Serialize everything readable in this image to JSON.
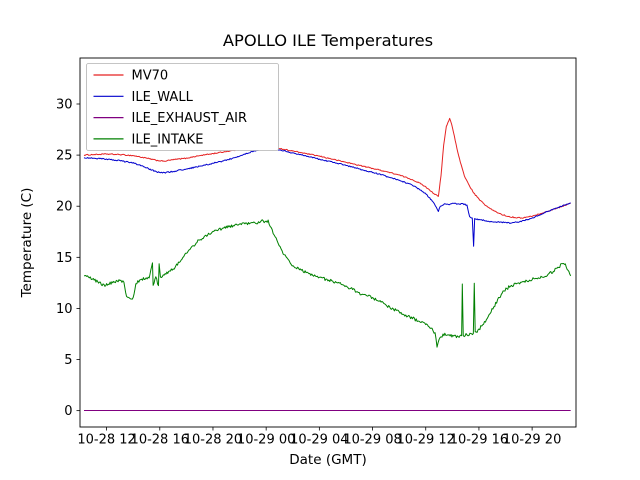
{
  "figure": {
    "background": "#ffffff"
  },
  "chart_data": {
    "type": "line",
    "title": "APOLLO ILE Temperatures",
    "xlabel": "Date (GMT)",
    "ylabel": "Temperature (C)",
    "x_unit": "hours since 10-28 00:00 GMT",
    "grid": false,
    "legend_position": "upper left",
    "xlim": [
      10.0,
      47.3
    ],
    "ylim": [
      -1.6,
      34.5
    ],
    "yticks": [
      0,
      5,
      10,
      15,
      20,
      25,
      30
    ],
    "xticks": {
      "values": [
        12,
        16,
        20,
        24,
        28,
        32,
        36,
        40,
        44
      ],
      "labels": [
        "10-28 12",
        "10-28 16",
        "10-28 20",
        "10-29 00",
        "10-29 04",
        "10-29 08",
        "10-29 12",
        "10-29 16",
        "10-29 20"
      ]
    },
    "series": [
      {
        "name": "MV70",
        "color": "#e52222",
        "noise": 0.05,
        "points": [
          [
            10.3,
            25.0
          ],
          [
            11.0,
            25.05
          ],
          [
            12.0,
            25.1
          ],
          [
            13.0,
            25.05
          ],
          [
            14.0,
            24.95
          ],
          [
            15.0,
            24.7
          ],
          [
            15.7,
            24.5
          ],
          [
            16.3,
            24.4
          ],
          [
            17.0,
            24.55
          ],
          [
            18.0,
            24.7
          ],
          [
            19.0,
            24.95
          ],
          [
            20.0,
            25.15
          ],
          [
            21.0,
            25.35
          ],
          [
            22.0,
            25.55
          ],
          [
            23.0,
            25.75
          ],
          [
            23.8,
            25.85
          ],
          [
            24.3,
            25.8
          ],
          [
            25.0,
            25.65
          ],
          [
            26.0,
            25.4
          ],
          [
            27.0,
            25.15
          ],
          [
            28.0,
            24.9
          ],
          [
            29.0,
            24.6
          ],
          [
            30.0,
            24.3
          ],
          [
            31.0,
            24.0
          ],
          [
            32.0,
            23.7
          ],
          [
            33.0,
            23.4
          ],
          [
            34.0,
            23.05
          ],
          [
            35.0,
            22.6
          ],
          [
            35.7,
            22.15
          ],
          [
            36.2,
            21.7
          ],
          [
            36.6,
            21.25
          ],
          [
            36.95,
            20.95
          ],
          [
            37.15,
            23.0
          ],
          [
            37.35,
            26.0
          ],
          [
            37.55,
            27.8
          ],
          [
            37.8,
            28.6
          ],
          [
            37.95,
            28.0
          ],
          [
            38.15,
            26.9
          ],
          [
            38.35,
            25.6
          ],
          [
            38.6,
            24.3
          ],
          [
            38.9,
            23.0
          ],
          [
            39.2,
            22.2
          ],
          [
            39.6,
            21.3
          ],
          [
            40.0,
            20.7
          ],
          [
            40.4,
            20.2
          ],
          [
            40.8,
            19.8
          ],
          [
            41.2,
            19.5
          ],
          [
            41.7,
            19.2
          ],
          [
            42.2,
            19.0
          ],
          [
            42.7,
            18.9
          ],
          [
            43.2,
            18.85
          ],
          [
            43.7,
            18.95
          ],
          [
            44.2,
            19.1
          ],
          [
            44.7,
            19.3
          ],
          [
            45.2,
            19.5
          ],
          [
            45.7,
            19.75
          ],
          [
            46.2,
            19.95
          ],
          [
            46.6,
            20.15
          ],
          [
            46.9,
            20.3
          ]
        ]
      },
      {
        "name": "ILE_WALL",
        "color": "#0000cd",
        "noise": 0.06,
        "points": [
          [
            10.3,
            24.75
          ],
          [
            11.0,
            24.7
          ],
          [
            12.0,
            24.6
          ],
          [
            13.0,
            24.45
          ],
          [
            14.0,
            24.25
          ],
          [
            15.0,
            23.75
          ],
          [
            15.7,
            23.4
          ],
          [
            16.2,
            23.25
          ],
          [
            17.0,
            23.4
          ],
          [
            18.0,
            23.65
          ],
          [
            19.0,
            23.9
          ],
          [
            20.0,
            24.2
          ],
          [
            21.0,
            24.5
          ],
          [
            22.0,
            24.9
          ],
          [
            23.0,
            25.35
          ],
          [
            23.8,
            25.65
          ],
          [
            24.2,
            25.7
          ],
          [
            25.0,
            25.5
          ],
          [
            26.0,
            25.2
          ],
          [
            27.0,
            24.9
          ],
          [
            28.0,
            24.6
          ],
          [
            29.0,
            24.3
          ],
          [
            30.0,
            24.0
          ],
          [
            31.0,
            23.65
          ],
          [
            32.0,
            23.3
          ],
          [
            33.0,
            22.95
          ],
          [
            34.0,
            22.55
          ],
          [
            35.0,
            22.05
          ],
          [
            35.6,
            21.6
          ],
          [
            36.1,
            21.1
          ],
          [
            36.5,
            20.5
          ],
          [
            36.8,
            19.9
          ],
          [
            36.95,
            19.5
          ],
          [
            37.1,
            20.0
          ],
          [
            37.4,
            20.25
          ],
          [
            37.7,
            20.15
          ],
          [
            38.0,
            20.3
          ],
          [
            38.4,
            20.2
          ],
          [
            38.8,
            20.25
          ],
          [
            39.1,
            20.1
          ],
          [
            39.3,
            19.0
          ],
          [
            39.5,
            18.85
          ],
          [
            39.6,
            16.1
          ],
          [
            39.68,
            18.8
          ],
          [
            40.0,
            18.7
          ],
          [
            40.4,
            18.6
          ],
          [
            40.9,
            18.5
          ],
          [
            41.4,
            18.45
          ],
          [
            41.9,
            18.4
          ],
          [
            42.4,
            18.35
          ],
          [
            42.9,
            18.45
          ],
          [
            43.4,
            18.6
          ],
          [
            43.9,
            18.8
          ],
          [
            44.4,
            19.05
          ],
          [
            44.9,
            19.35
          ],
          [
            45.4,
            19.6
          ],
          [
            45.9,
            19.85
          ],
          [
            46.3,
            20.05
          ],
          [
            46.6,
            20.2
          ],
          [
            46.9,
            20.35
          ]
        ]
      },
      {
        "name": "ILE_EXHAUST_AIR",
        "color": "#800080",
        "noise": 0,
        "points": [
          [
            10.3,
            0.02
          ],
          [
            46.9,
            0.02
          ]
        ]
      },
      {
        "name": "ILE_INTAKE",
        "color": "#008000",
        "noise": 0.15,
        "points": [
          [
            10.3,
            13.2
          ],
          [
            10.7,
            13.0
          ],
          [
            11.0,
            12.9
          ],
          [
            11.4,
            12.5
          ],
          [
            11.8,
            12.3
          ],
          [
            12.2,
            12.4
          ],
          [
            12.6,
            12.6
          ],
          [
            13.0,
            12.7
          ],
          [
            13.3,
            12.6
          ],
          [
            13.5,
            11.2
          ],
          [
            13.8,
            10.9
          ],
          [
            14.0,
            11.1
          ],
          [
            14.2,
            12.4
          ],
          [
            14.5,
            12.8
          ],
          [
            14.9,
            12.9
          ],
          [
            15.2,
            13.0
          ],
          [
            15.45,
            14.5
          ],
          [
            15.5,
            12.3
          ],
          [
            15.7,
            13.1
          ],
          [
            15.9,
            12.2
          ],
          [
            15.95,
            14.4
          ],
          [
            16.05,
            13.1
          ],
          [
            16.4,
            13.4
          ],
          [
            16.8,
            13.7
          ],
          [
            17.2,
            14.1
          ],
          [
            17.6,
            14.7
          ],
          [
            18.0,
            15.4
          ],
          [
            18.4,
            16.0
          ],
          [
            18.8,
            16.5
          ],
          [
            19.2,
            16.9
          ],
          [
            19.6,
            17.2
          ],
          [
            20.0,
            17.5
          ],
          [
            20.4,
            17.7
          ],
          [
            20.8,
            17.9
          ],
          [
            21.2,
            18.0
          ],
          [
            21.6,
            18.1
          ],
          [
            22.0,
            18.2
          ],
          [
            22.4,
            18.25
          ],
          [
            22.8,
            18.3
          ],
          [
            23.2,
            18.35
          ],
          [
            23.5,
            18.4
          ],
          [
            23.7,
            18.7
          ],
          [
            23.85,
            18.45
          ],
          [
            24.0,
            18.55
          ],
          [
            24.15,
            18.6
          ],
          [
            24.3,
            18.0
          ],
          [
            24.6,
            17.2
          ],
          [
            24.9,
            16.4
          ],
          [
            25.2,
            15.6
          ],
          [
            25.5,
            15.0
          ],
          [
            25.8,
            14.5
          ],
          [
            26.1,
            14.1
          ],
          [
            26.5,
            13.8
          ],
          [
            27.0,
            13.5
          ],
          [
            27.5,
            13.25
          ],
          [
            28.0,
            13.05
          ],
          [
            28.5,
            12.85
          ],
          [
            29.0,
            12.65
          ],
          [
            29.5,
            12.45
          ],
          [
            30.0,
            12.15
          ],
          [
            30.5,
            11.85
          ],
          [
            31.0,
            11.5
          ],
          [
            31.5,
            11.25
          ],
          [
            32.0,
            11.05
          ],
          [
            32.5,
            10.75
          ],
          [
            33.0,
            10.35
          ],
          [
            33.5,
            10.0
          ],
          [
            34.0,
            9.65
          ],
          [
            34.5,
            9.35
          ],
          [
            35.0,
            9.05
          ],
          [
            35.5,
            8.75
          ],
          [
            36.0,
            8.45
          ],
          [
            36.4,
            8.05
          ],
          [
            36.7,
            7.6
          ],
          [
            36.85,
            6.2
          ],
          [
            37.0,
            6.95
          ],
          [
            37.3,
            7.45
          ],
          [
            37.7,
            7.4
          ],
          [
            38.1,
            7.3
          ],
          [
            38.45,
            7.25
          ],
          [
            38.7,
            7.3
          ],
          [
            38.75,
            12.4
          ],
          [
            38.82,
            7.35
          ],
          [
            39.1,
            7.45
          ],
          [
            39.4,
            7.5
          ],
          [
            39.58,
            7.55
          ],
          [
            39.65,
            12.5
          ],
          [
            39.72,
            7.65
          ],
          [
            40.0,
            7.95
          ],
          [
            40.35,
            8.5
          ],
          [
            40.7,
            9.2
          ],
          [
            41.05,
            10.0
          ],
          [
            41.4,
            10.8
          ],
          [
            41.75,
            11.5
          ],
          [
            42.1,
            11.95
          ],
          [
            42.45,
            12.25
          ],
          [
            42.8,
            12.45
          ],
          [
            43.2,
            12.55
          ],
          [
            43.6,
            12.65
          ],
          [
            44.0,
            12.85
          ],
          [
            44.4,
            12.95
          ],
          [
            44.8,
            13.1
          ],
          [
            45.2,
            13.3
          ],
          [
            45.6,
            13.65
          ],
          [
            46.0,
            14.05
          ],
          [
            46.3,
            14.4
          ],
          [
            46.5,
            14.35
          ],
          [
            46.7,
            13.75
          ],
          [
            46.9,
            13.15
          ]
        ]
      }
    ]
  }
}
